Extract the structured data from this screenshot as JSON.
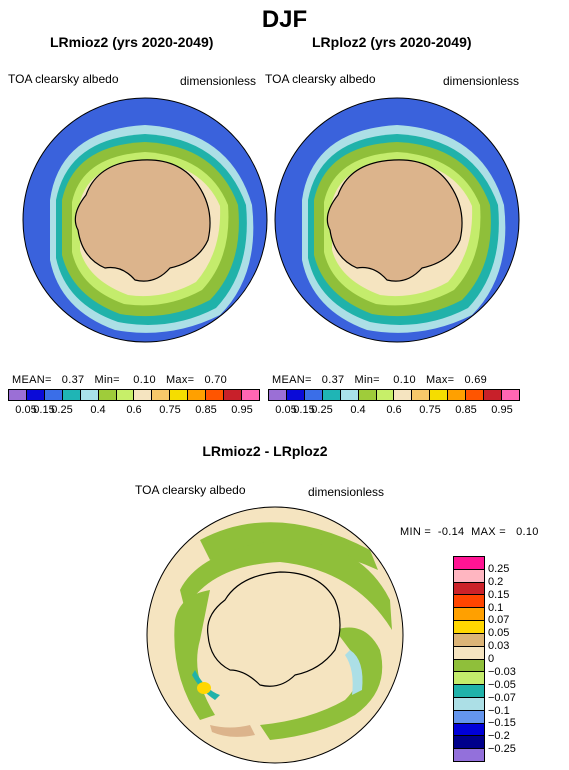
{
  "figure": {
    "title": "DJF",
    "panels": [
      {
        "title": "LRmioz2 (yrs 2020-2049)",
        "left_label": "TOA clearsky albedo",
        "right_label": "dimensionless",
        "stats": {
          "mean_label": "MEAN=",
          "mean": "0.37",
          "min_label": "Min=",
          "min": "0.10",
          "max_label": "Max=",
          "max": "0.70"
        }
      },
      {
        "title": "LRploz2 (yrs 2020-2049)",
        "left_label": "TOA clearsky albedo",
        "right_label": "dimensionless",
        "stats": {
          "mean_label": "MEAN=",
          "mean": "0.37",
          "min_label": "Min=",
          "min": "0.10",
          "max_label": "Max=",
          "max": "0.69"
        }
      }
    ],
    "abs_colorbar": {
      "ticks": [
        "0.05",
        "0.15",
        "0.25",
        "0.4",
        "0.6",
        "0.75",
        "0.85",
        "0.95"
      ],
      "colors": [
        "#9b6fd6",
        "#0a0ad8",
        "#3a6ee8",
        "#1fb5b5",
        "#a9e2ea",
        "#9fcc3a",
        "#c7ef69",
        "#f5e4c0",
        "#f7c86a",
        "#f5dd00",
        "#ffa000",
        "#ff5500",
        "#c8202a",
        "#ff66b2"
      ]
    },
    "diff": {
      "title": "LRmioz2 - LRploz2",
      "left_label": "TOA clearsky albedo",
      "right_label": "dimensionless",
      "stats": {
        "min_label": "MIN =",
        "min": "-0.14",
        "max_label": "MAX =",
        "max": "0.10"
      },
      "colorbar": {
        "ticks": [
          "0.25",
          "0.2",
          "0.15",
          "0.1",
          "0.07",
          "0.05",
          "0.03",
          "0",
          "-0.03",
          "-0.05",
          "-0.07",
          "-0.1",
          "-0.15",
          "-0.2",
          "-0.25"
        ],
        "colors": [
          "#ff1493",
          "#ffb6c1",
          "#cc2229",
          "#ff4500",
          "#ffa000",
          "#ffd700",
          "#dcb477",
          "#f5e4c0",
          "#8fbf3a",
          "#c4ec6c",
          "#20b2aa",
          "#acdfe6",
          "#6495ed",
          "#0000d8",
          "#00008b",
          "#9370db"
        ]
      }
    },
    "colors": {
      "ocean_blue": "#3a62dc",
      "land_tan": "#dcb48c",
      "green": "#8fbf3a",
      "light_green": "#c4ec6c",
      "teal": "#20b2aa",
      "light_blue": "#acdfe6",
      "beige": "#f5e4c0"
    }
  }
}
